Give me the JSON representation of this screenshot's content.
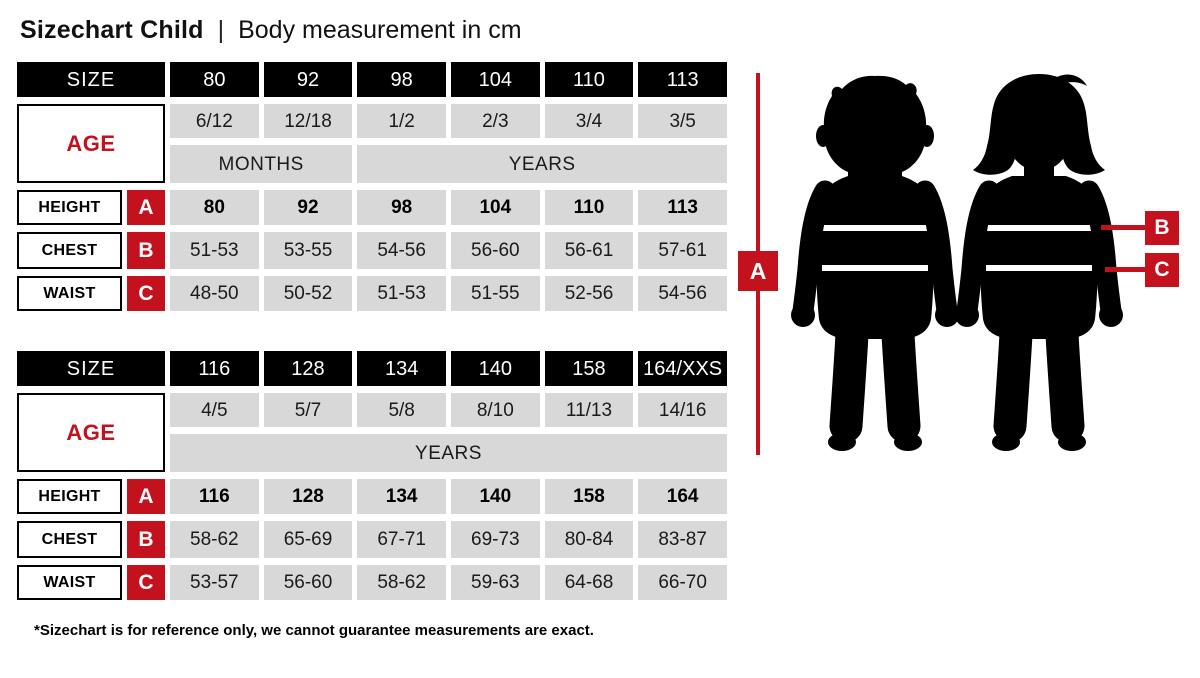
{
  "title": {
    "main": "Sizechart Child",
    "separator": "|",
    "subtitle": "Body measurement in cm"
  },
  "labels": {
    "size": "SIZE",
    "age": "AGE",
    "height": "HEIGHT",
    "chest": "CHEST",
    "waist": "WAIST"
  },
  "markers": {
    "a": "A",
    "b": "B",
    "c": "C"
  },
  "colors": {
    "red": "#c4111e",
    "gray": "#d8d8d8",
    "black": "#000000"
  },
  "footnote": "*Sizechart is for reference only, we cannot guarantee measurements are exact.",
  "chart_data": [
    {
      "type": "table",
      "columns": [
        "80",
        "92",
        "98",
        "104",
        "110",
        "113"
      ],
      "age": [
        "6/12",
        "12/18",
        "1/2",
        "2/3",
        "3/4",
        "3/5"
      ],
      "age_units": [
        {
          "label": "MONTHS",
          "span": 2
        },
        {
          "label": "YEARS",
          "span": 4
        }
      ],
      "height_cm": [
        "80",
        "92",
        "98",
        "104",
        "110",
        "113"
      ],
      "chest_cm": [
        "51-53",
        "53-55",
        "54-56",
        "56-60",
        "56-61",
        "57-61"
      ],
      "waist_cm": [
        "48-50",
        "50-52",
        "51-53",
        "51-55",
        "52-56",
        "54-56"
      ]
    },
    {
      "type": "table",
      "columns": [
        "116",
        "128",
        "134",
        "140",
        "158",
        "164/XXS"
      ],
      "age": [
        "4/5",
        "5/7",
        "5/8",
        "8/10",
        "11/13",
        "14/16"
      ],
      "age_units": [
        {
          "label": "YEARS",
          "span": 6
        }
      ],
      "height_cm": [
        "116",
        "128",
        "134",
        "140",
        "158",
        "164"
      ],
      "chest_cm": [
        "58-62",
        "65-69",
        "67-71",
        "69-73",
        "80-84",
        "83-87"
      ],
      "waist_cm": [
        "53-57",
        "56-60",
        "58-62",
        "59-63",
        "64-68",
        "66-70"
      ]
    }
  ]
}
